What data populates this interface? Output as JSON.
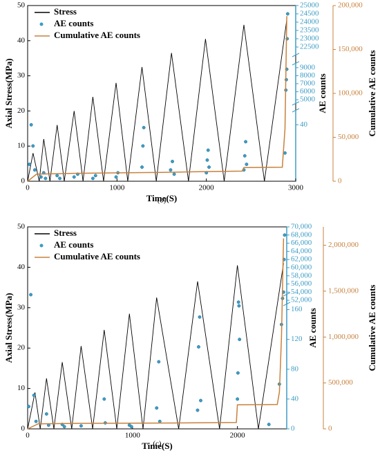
{
  "chart_data": [
    {
      "type": "line",
      "caption": "(b)",
      "xlabel": "Time(S)",
      "ylabel": "Axial Stress(MPa)",
      "y2label": "AE counts",
      "y3label": "Cumulative AE counts",
      "xlim": [
        0,
        3000
      ],
      "xticks": [
        0,
        1000,
        2000,
        3000
      ],
      "ylim": [
        0,
        50
      ],
      "yticks": [
        0,
        10,
        20,
        30,
        40,
        50
      ],
      "y2segments": [
        [
          0,
          50
        ],
        [
          4500,
          9500
        ],
        [
          22000,
          25000
        ]
      ],
      "y2ticks": [
        40,
        5000,
        6000,
        7000,
        8000,
        9000,
        22500,
        23000,
        23500,
        24000,
        24500,
        25000
      ],
      "y3lim": [
        0,
        200000
      ],
      "y3ticks": [
        0,
        {
          "value": 50000,
          "label": "50,000"
        },
        {
          "value": 100000,
          "label": "100,000"
        },
        {
          "value": 150000,
          "label": "150,000"
        },
        {
          "value": 200000,
          "label": "200,000"
        }
      ],
      "legend": "upper left",
      "series": [
        {
          "name": "Stress",
          "type": "line",
          "color": "#000000",
          "x": [
            0,
            60,
            130,
            180,
            250,
            330,
            410,
            520,
            620,
            730,
            850,
            990,
            1120,
            1280,
            1440,
            1610,
            1800,
            1990,
            2200,
            2420,
            2650,
            2900
          ],
          "values": [
            0,
            8,
            0,
            12,
            0,
            16,
            0,
            20,
            0,
            24,
            0,
            28,
            0,
            32.5,
            0,
            36.5,
            0,
            40.5,
            0,
            44.5,
            0,
            46
          ]
        },
        {
          "name": "AE counts",
          "type": "scatter",
          "axis": "y2",
          "color": "#3d9cc4",
          "x": [
            20,
            40,
            60,
            80,
            150,
            180,
            200,
            330,
            360,
            520,
            560,
            730,
            760,
            990,
            1010,
            1280,
            1290,
            1300,
            1600,
            1620,
            1640,
            2000,
            2010,
            2020,
            2030,
            2420,
            2430,
            2440,
            2450,
            2880,
            2890,
            2895,
            2900,
            2905,
            2910
          ],
          "values": [
            12,
            40,
            25,
            8,
            3,
            6,
            2,
            4,
            2,
            3,
            5,
            2,
            4,
            3,
            6,
            10,
            25,
            38,
            8,
            14,
            5,
            6,
            15,
            22,
            10,
            8,
            18,
            28,
            12,
            20,
            6200,
            7500,
            8800,
            23000,
            24500
          ]
        },
        {
          "name": "Cumulative AE counts",
          "type": "line",
          "axis": "y3",
          "color": "#c8803c",
          "x": [
            0,
            100,
            500,
            1000,
            1500,
            2000,
            2400,
            2420,
            2850,
            2880,
            2900
          ],
          "values": [
            0,
            8000,
            9000,
            9500,
            10000,
            11000,
            11500,
            15500,
            16000,
            60000,
            188000
          ]
        }
      ]
    },
    {
      "type": "line",
      "caption": "(c)",
      "xlabel": "Time(S)",
      "ylabel": "Axial Stress(MPa)",
      "y2label": "AE counts",
      "y3label": "Cumulative AE counts",
      "xlim": [
        0,
        2470
      ],
      "xticks": [
        0,
        1000,
        2000
      ],
      "ylim": [
        0,
        50
      ],
      "yticks": [
        0,
        10,
        20,
        30,
        40,
        50
      ],
      "y2segments": [
        [
          0,
          180
        ],
        [
          51000,
          70000
        ]
      ],
      "y2ticks": [
        0,
        40,
        80,
        120,
        160,
        {
          "value": 52000,
          "label": "52,000"
        },
        {
          "value": 54000,
          "label": "54,000"
        },
        {
          "value": 56000,
          "label": "56,000"
        },
        {
          "value": 58000,
          "label": "58,000"
        },
        {
          "value": 60000,
          "label": "60,000"
        },
        {
          "value": 62000,
          "label": "62,000"
        },
        {
          "value": 64000,
          "label": "64,000"
        },
        {
          "value": 66000,
          "label": "66,000"
        },
        {
          "value": 68000,
          "label": "68,000"
        },
        {
          "value": 70000,
          "label": "70,000"
        }
      ],
      "y3lim": [
        0,
        2200000
      ],
      "y3ticks": [
        0,
        {
          "value": 500000,
          "label": "500,000"
        },
        {
          "value": 1000000,
          "label": "1,000,000"
        },
        {
          "value": 1500000,
          "label": "1,500,000"
        },
        {
          "value": 2000000,
          "label": "2,000,000"
        }
      ],
      "legend": "upper left",
      "series": [
        {
          "name": "Stress",
          "type": "line",
          "color": "#000000",
          "x": [
            0,
            70,
            120,
            180,
            250,
            330,
            420,
            510,
            620,
            730,
            850,
            970,
            1100,
            1230,
            1440,
            1620,
            1830,
            2000,
            2200,
            2440
          ],
          "values": [
            0,
            9,
            0,
            12.5,
            0,
            16.5,
            0,
            20.5,
            0,
            24.5,
            0,
            28.5,
            0,
            32.5,
            0,
            36.5,
            0,
            40.5,
            0,
            41
          ]
        },
        {
          "name": "AE counts",
          "type": "scatter",
          "axis": "y2",
          "color": "#3d9cc4",
          "x": [
            10,
            30,
            60,
            80,
            180,
            200,
            330,
            350,
            510,
            730,
            740,
            970,
            990,
            1230,
            1250,
            1260,
            1620,
            1630,
            1640,
            1650,
            2000,
            2005,
            2010,
            2015,
            2020,
            2300,
            2400,
            2420,
            2430,
            2440,
            2445,
            2450
          ],
          "values": [
            30,
            180,
            45,
            10,
            20,
            5,
            6,
            3,
            4,
            40,
            8,
            5,
            3,
            28,
            90,
            10,
            25,
            110,
            150,
            38,
            40,
            75,
            170,
            165,
            120,
            6,
            60,
            140,
            175,
            54000,
            62000,
            68000
          ]
        },
        {
          "name": "Cumulative AE counts",
          "type": "line",
          "axis": "y3",
          "color": "#c8803c",
          "x": [
            0,
            100,
            500,
            1000,
            1500,
            1990,
            2000,
            2380,
            2400,
            2420,
            2440
          ],
          "values": [
            0,
            55000,
            60000,
            62000,
            65000,
            70000,
            262000,
            265000,
            400000,
            1000000,
            2075000
          ]
        }
      ]
    }
  ]
}
